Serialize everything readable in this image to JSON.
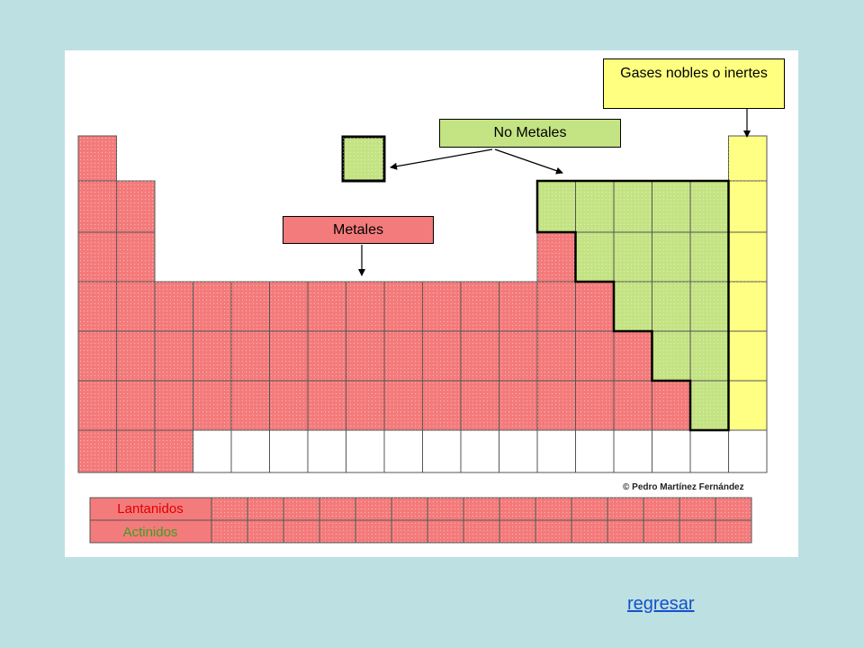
{
  "labels": {
    "noble_gases": "Gases nobles o inertes",
    "nonmetals": "No Metales",
    "metals": "Metales",
    "lanthanides": "Lantanidos",
    "actinides": "Actinidos",
    "copyright": "© Pedro Martínez Fernández"
  },
  "back_link": "regresar",
  "colors": {
    "page_background": "#bde0e3",
    "metal": "#f47b7b",
    "nonmetal": "#c4e383",
    "noble_gas": "#ffff80",
    "empty": "#ffffff",
    "lanthanide_text": "#e00000",
    "actinide_text": "#3aa020",
    "link": "#1450c8"
  }
}
